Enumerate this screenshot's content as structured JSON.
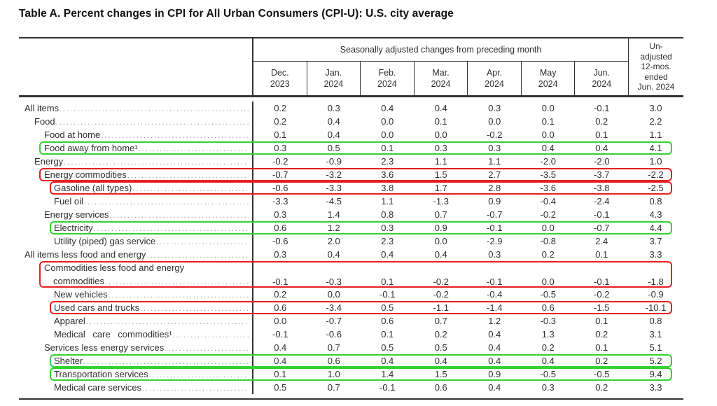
{
  "title": "Table A. Percent changes in CPI for All Urban Consumers (CPI-U): U.S. city average",
  "table": {
    "group_header": "Seasonally adjusted changes from preceding month",
    "month_columns": [
      {
        "line1": "Dec.",
        "line2": "2023"
      },
      {
        "line1": "Jan.",
        "line2": "2024"
      },
      {
        "line1": "Feb.",
        "line2": "2024"
      },
      {
        "line1": "Mar.",
        "line2": "2024"
      },
      {
        "line1": "Apr.",
        "line2": "2024"
      },
      {
        "line1": "May",
        "line2": "2024"
      },
      {
        "line1": "Jun.",
        "line2": "2024"
      }
    ],
    "unadjusted_header_lines": [
      "Un-",
      "adjusted",
      "12-mos.",
      "ended",
      "Jun. 2024"
    ],
    "highlight_colors": {
      "green": "#33d133",
      "red": "#e7201e"
    },
    "rows": [
      {
        "label": "All items",
        "indent": 0,
        "highlight": null,
        "values": [
          "0.2",
          "0.3",
          "0.4",
          "0.4",
          "0.3",
          "0.0",
          "-0.1",
          "3.0"
        ]
      },
      {
        "label": "Food",
        "indent": 1,
        "highlight": null,
        "values": [
          "0.2",
          "0.4",
          "0.0",
          "0.1",
          "0.0",
          "0.1",
          "0.2",
          "2.2"
        ]
      },
      {
        "label": "Food at home",
        "indent": 2,
        "highlight": null,
        "values": [
          "0.1",
          "0.4",
          "0.0",
          "0.0",
          "-0.2",
          "0.0",
          "0.1",
          "1.1"
        ]
      },
      {
        "label": "Food away from home¹",
        "indent": 2,
        "highlight": "green",
        "values": [
          "0.3",
          "0.5",
          "0.1",
          "0.3",
          "0.3",
          "0.4",
          "0.4",
          "4.1"
        ]
      },
      {
        "label": "Energy",
        "indent": 1,
        "highlight": null,
        "values": [
          "-0.2",
          "-0.9",
          "2.3",
          "1.1",
          "1.1",
          "-2.0",
          "-2.0",
          "1.0"
        ]
      },
      {
        "label": "Energy commodities",
        "indent": 2,
        "highlight": "red",
        "values": [
          "-0.7",
          "-3.2",
          "3.6",
          "1.5",
          "2.7",
          "-3.5",
          "-3.7",
          "-2.2"
        ]
      },
      {
        "label": "Gasoline (all types)",
        "indent": 3,
        "highlight": "red",
        "values": [
          "-0.6",
          "-3.3",
          "3.8",
          "1.7",
          "2.8",
          "-3.6",
          "-3.8",
          "-2.5"
        ]
      },
      {
        "label": "Fuel oil",
        "indent": 3,
        "highlight": null,
        "values": [
          "-3.3",
          "-4.5",
          "1.1",
          "-1.3",
          "0.9",
          "-0.4",
          "-2.4",
          "0.8"
        ]
      },
      {
        "label": "Energy services",
        "indent": 2,
        "highlight": null,
        "values": [
          "0.3",
          "1.4",
          "0.8",
          "0.7",
          "-0.7",
          "-0.2",
          "-0.1",
          "4.3"
        ]
      },
      {
        "label": "Electricity",
        "indent": 3,
        "highlight": "green",
        "values": [
          "0.6",
          "1.2",
          "0.3",
          "0.9",
          "-0.1",
          "0.0",
          "-0.7",
          "4.4"
        ]
      },
      {
        "label": "Utility (piped) gas service",
        "indent": 3,
        "highlight": null,
        "values": [
          "-0.6",
          "2.0",
          "2.3",
          "0.0",
          "-2.9",
          "-0.8",
          "2.4",
          "3.7"
        ]
      },
      {
        "label": "All items less food and energy",
        "indent": 0,
        "highlight": null,
        "values": [
          "0.3",
          "0.4",
          "0.4",
          "0.4",
          "0.3",
          "0.2",
          "0.1",
          "3.3"
        ]
      },
      {
        "label": "Commodities less food and energy",
        "label2": "commodities",
        "indent": 2,
        "highlight": "red",
        "values": [
          "-0.1",
          "-0.3",
          "0.1",
          "-0.2",
          "-0.1",
          "0.0",
          "-0.1",
          "-1.8"
        ]
      },
      {
        "label": "New vehicles",
        "indent": 3,
        "highlight": null,
        "values": [
          "0.2",
          "0.0",
          "-0.1",
          "-0.2",
          "-0.4",
          "-0.5",
          "-0.2",
          "-0.9"
        ]
      },
      {
        "label": "Used cars and trucks",
        "indent": 3,
        "highlight": "red",
        "values": [
          "0.6",
          "-3.4",
          "0.5",
          "-1.1",
          "-1.4",
          "0.6",
          "-1.5",
          "-10.1"
        ]
      },
      {
        "label": "Apparel",
        "indent": 3,
        "highlight": null,
        "values": [
          "0.0",
          "-0.7",
          "0.6",
          "0.7",
          "1.2",
          "-0.3",
          "0.1",
          "0.8"
        ]
      },
      {
        "label": "Medical care commodities¹",
        "indent": 3,
        "highlight": null,
        "wide": true,
        "values": [
          "-0.1",
          "-0.6",
          "0.1",
          "0.2",
          "0.4",
          "1.3",
          "0.2",
          "3.1"
        ]
      },
      {
        "label": "Services less energy services",
        "indent": 2,
        "highlight": null,
        "values": [
          "0.4",
          "0.7",
          "0.5",
          "0.5",
          "0.4",
          "0.2",
          "0.1",
          "5.1"
        ]
      },
      {
        "label": "Shelter",
        "indent": 3,
        "highlight": "green",
        "values": [
          "0.4",
          "0.6",
          "0.4",
          "0.4",
          "0.4",
          "0.4",
          "0.2",
          "5.2"
        ]
      },
      {
        "label": "Transportation services",
        "indent": 3,
        "highlight": "green",
        "values": [
          "0.1",
          "1.0",
          "1.4",
          "1.5",
          "0.9",
          "-0.5",
          "-0.5",
          "9.4"
        ]
      },
      {
        "label": "Medical care services",
        "indent": 3,
        "highlight": null,
        "values": [
          "0.5",
          "0.7",
          "-0.1",
          "0.6",
          "0.4",
          "0.3",
          "0.2",
          "3.3"
        ]
      }
    ]
  }
}
